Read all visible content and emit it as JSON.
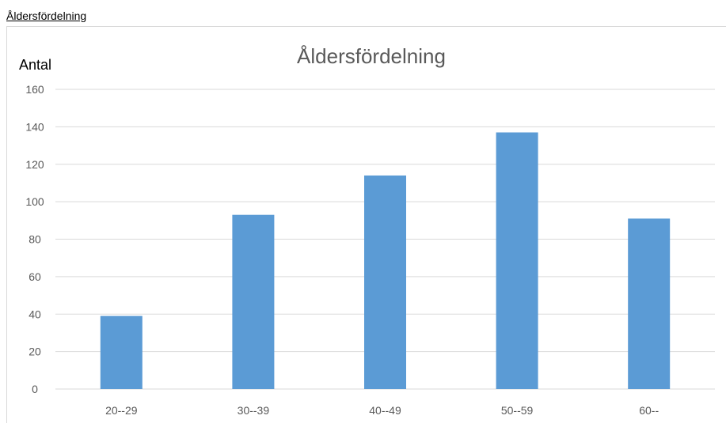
{
  "sheet_label": "Åldersfördelning",
  "chart_data": {
    "type": "bar",
    "title": "Åldersfördelning",
    "ylabel": "Antal",
    "xlabel": "",
    "categories": [
      "20--29",
      "30--39",
      "40--49",
      "50--59",
      "60--"
    ],
    "values": [
      39,
      93,
      114,
      137,
      91
    ],
    "ylim": [
      0,
      160
    ],
    "yticks": [
      0,
      20,
      40,
      60,
      80,
      100,
      120,
      140,
      160
    ],
    "grid": true,
    "bar_color": "#5b9bd5",
    "grid_color": "#d9d9d9",
    "legend": "none"
  }
}
